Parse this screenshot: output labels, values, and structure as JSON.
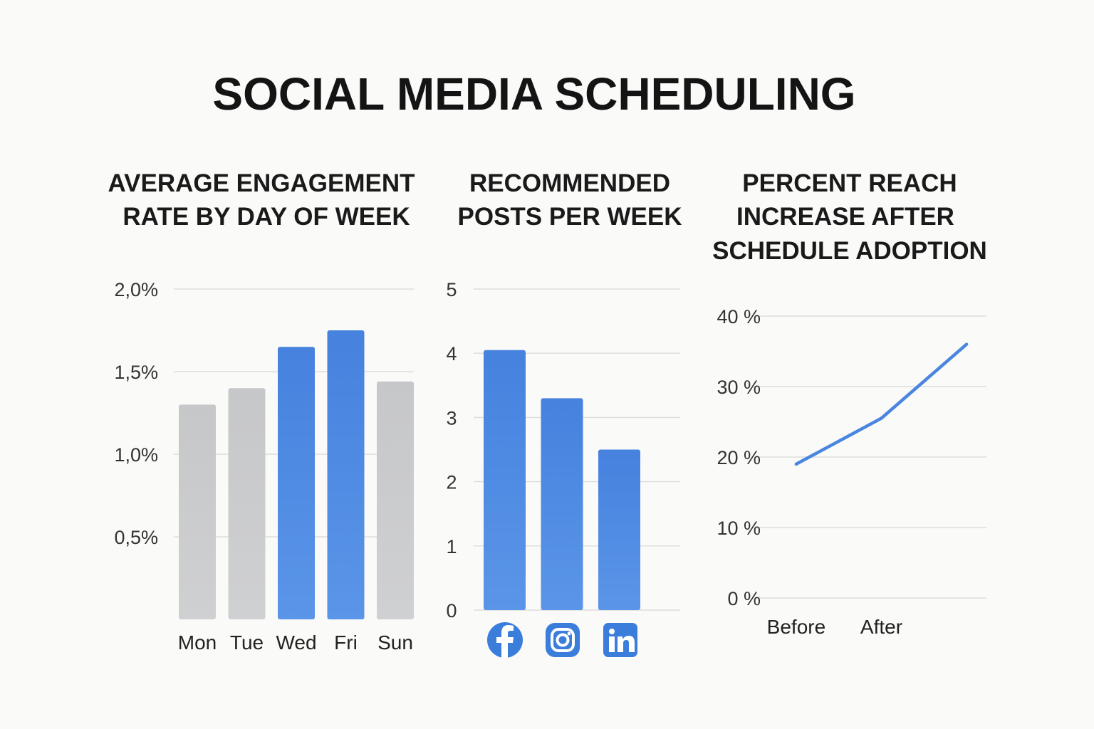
{
  "title": "SOCIAL MEDIA SCHEDULING",
  "colors": {
    "highlight": "#4a86e0",
    "muted": "#c8c9cb",
    "line": "#4a86e0",
    "grid": "#dcdcdc",
    "background": "#fafaf8"
  },
  "chart_data": [
    {
      "type": "bar",
      "title_lines": [
        "AVERAGE ENGAGEMENT",
        "RATE BY DAY OF WEEK"
      ],
      "categories": [
        "Mon",
        "Tue",
        "Wed",
        "Fri",
        "Sun"
      ],
      "values": [
        1.3,
        1.4,
        1.65,
        1.75,
        1.44
      ],
      "highlight": [
        false,
        false,
        true,
        true,
        false
      ],
      "unit": "%",
      "yticks": [
        0.5,
        1.0,
        1.5,
        2.0
      ],
      "ytick_labels": [
        "0,5%",
        "1,0%",
        "1,5%",
        "2,0%"
      ],
      "ylim": [
        0,
        2.0
      ],
      "xlabel": "",
      "ylabel": ""
    },
    {
      "type": "bar",
      "title_lines": [
        "RECOMMENDED",
        "POSTS PER WEEK"
      ],
      "categories": [
        "Facebook",
        "Instagram",
        "LinkedIn"
      ],
      "category_icons": [
        "facebook-icon",
        "instagram-icon",
        "linkedin-icon"
      ],
      "values": [
        4.05,
        3.3,
        2.5
      ],
      "yticks": [
        0,
        1,
        2,
        3,
        4,
        5
      ],
      "ytick_labels": [
        "0",
        "1",
        "2",
        "3",
        "4",
        "5"
      ],
      "ylim": [
        0,
        5
      ],
      "xlabel": "",
      "ylabel": ""
    },
    {
      "type": "line",
      "title_lines": [
        "PERCENT REACH",
        "INCREASE AFTER",
        "SCHEDULE ADOPTION"
      ],
      "x": [
        0,
        1,
        2
      ],
      "y": [
        19,
        25.5,
        36
      ],
      "xtick_positions": [
        0,
        1
      ],
      "xtick_labels": [
        "Before",
        "After"
      ],
      "xlim": [
        -0.15,
        2.15
      ],
      "yticks": [
        0,
        10,
        20,
        30,
        40
      ],
      "ytick_labels": [
        "0 %",
        "10 %",
        "20 %",
        "30 %",
        "40 %"
      ],
      "ylim": [
        0,
        40
      ],
      "xlabel": "",
      "ylabel": ""
    }
  ]
}
